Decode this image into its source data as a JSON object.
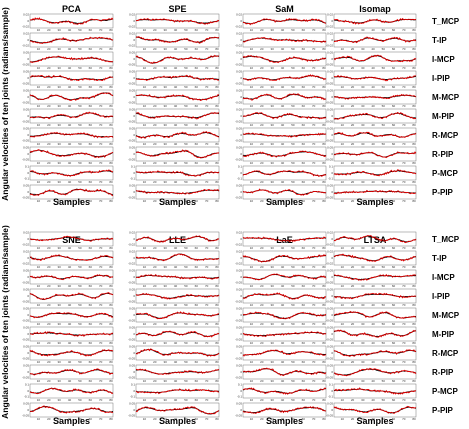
{
  "figure": {
    "ylabel": "Angular velocities of ten joints (radians/sample)",
    "xlabel": "Samples"
  },
  "chart_data": [
    {
      "type": "line",
      "panel": "top",
      "methods": [
        "PCA",
        "SPE",
        "SaM",
        "Isomap"
      ],
      "rows": [
        "T_MCP",
        "T-IP",
        "I-MCP",
        "I-PIP",
        "M-MCP",
        "M-PIP",
        "R-MCP",
        "R-PIP",
        "P-MCP",
        "P-PIP"
      ],
      "x_ticks": [
        10,
        20,
        30,
        40,
        50,
        60,
        70,
        80
      ],
      "xlim": [
        0,
        80
      ],
      "xlabel": "Samples",
      "ylabel": "Angular velocities of ten joints (radians/sample)",
      "series_colors": {
        "actual": "#000000",
        "estimated": "#e00000"
      },
      "y_ticks": {
        "T_MCP": [
          "0.02",
          "0",
          "-0.02"
        ],
        "T-IP": [
          "0.02",
          "0",
          "-0.02"
        ],
        "I-MCP": [
          "0.05",
          "0",
          "-0.05"
        ],
        "I-PIP": [
          "0.05",
          "0",
          "-0.05"
        ],
        "M-MCP": [
          "0.05",
          "0",
          "-0.05"
        ],
        "M-PIP": [
          "0.05",
          "0",
          "-0.05"
        ],
        "R-MCP": [
          "0.05",
          "0",
          "-0.05"
        ],
        "R-PIP": [
          "0.05",
          "0",
          "-0.05"
        ],
        "P-MCP": [
          "0.1",
          "0",
          "-0.1"
        ],
        "P-PIP": [
          "0.05",
          "0",
          "-0.05"
        ]
      }
    },
    {
      "type": "line",
      "panel": "bottom",
      "methods": [
        "SNE",
        "LLE",
        "LaE",
        "LTSA"
      ],
      "rows": [
        "T_MCP",
        "T-IP",
        "I-MCP",
        "I-PIP",
        "M-MCP",
        "M-PIP",
        "R-MCP",
        "R-PIP",
        "P-MCP",
        "P-PIP"
      ],
      "x_ticks": [
        10,
        20,
        30,
        40,
        50,
        60,
        70,
        80
      ],
      "xlim": [
        0,
        80
      ],
      "xlabel": "Samples",
      "ylabel": "Angular velocities of ten joints (radians/sample)",
      "series_colors": {
        "actual": "#000000",
        "estimated": "#e00000"
      },
      "y_ticks": {
        "T_MCP": [
          "0.02",
          "0",
          "-0.02"
        ],
        "T-IP": [
          "0.02",
          "0",
          "-0.02"
        ],
        "I-MCP": [
          "0.05",
          "0",
          "-0.05"
        ],
        "I-PIP": [
          "0.05",
          "0",
          "-0.05"
        ],
        "M-MCP": [
          "0.05",
          "0",
          "-0.05"
        ],
        "M-PIP": [
          "0.05",
          "0",
          "-0.05"
        ],
        "R-MCP": [
          "0.05",
          "0",
          "-0.05"
        ],
        "R-PIP": [
          "0.05",
          "0",
          "-0.05"
        ],
        "P-MCP": [
          "0.1",
          "0",
          "-0.1"
        ],
        "P-PIP": [
          "0.05",
          "0",
          "-0.05"
        ]
      }
    }
  ]
}
